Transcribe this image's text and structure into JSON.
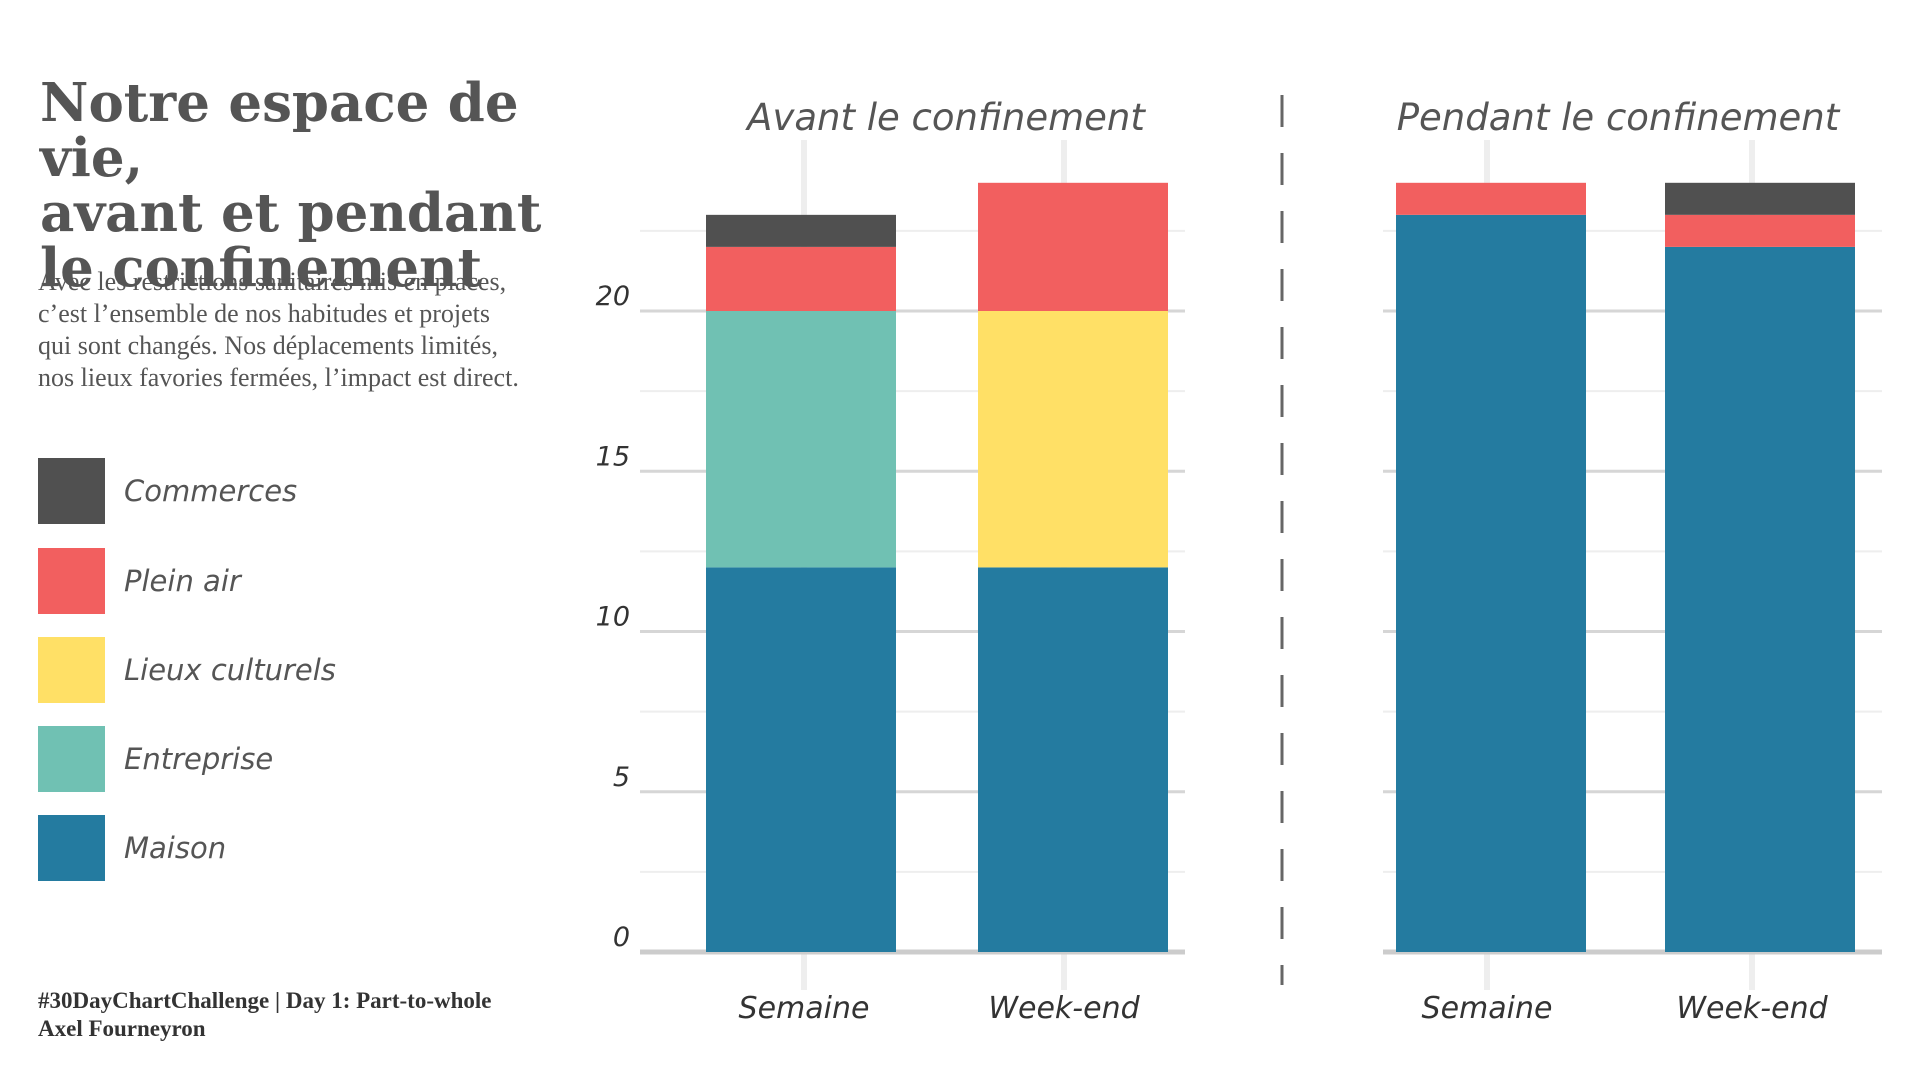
{
  "title_lines": [
    "Notre espace de vie,",
    "avant et pendant",
    "le confinement"
  ],
  "subtitle_lines": [
    "Avec les restrictions sanitaires mis en places,",
    "c’est l’ensemble de nos habitudes et projets",
    "qui sont changés. Nos déplacements limités,",
    "nos lieux favories fermées, l’impact est direct."
  ],
  "legend": [
    {
      "label": "Commerces",
      "color": "#505050"
    },
    {
      "label": "Plein air",
      "color": "#f25f5f"
    },
    {
      "label": "Lieux culturels",
      "color": "#ffe066"
    },
    {
      "label": "Entreprise",
      "color": "#70c1b3"
    },
    {
      "label": "Maison",
      "color": "#247ba0"
    }
  ],
  "caption_lines": [
    "#30DayChartChallenge | Day 1: Part-to-whole",
    "Axel Fourneyron"
  ],
  "chart_data": {
    "type": "bar",
    "stacked": true,
    "ylim": [
      0,
      24
    ],
    "yticks": [
      0,
      5,
      10,
      15,
      20
    ],
    "categories": [
      "Semaine",
      "Week-end"
    ],
    "stack_order": [
      "Maison",
      "Entreprise",
      "Lieux culturels",
      "Plein air",
      "Commerces"
    ],
    "panels": [
      {
        "title": "Avant le confinement",
        "series": [
          {
            "name": "Maison",
            "values": [
              12,
              12
            ]
          },
          {
            "name": "Entreprise",
            "values": [
              8,
              0
            ]
          },
          {
            "name": "Lieux culturels",
            "values": [
              0,
              8
            ]
          },
          {
            "name": "Plein air",
            "values": [
              2,
              4
            ]
          },
          {
            "name": "Commerces",
            "values": [
              1,
              0
            ]
          }
        ]
      },
      {
        "title": "Pendant le confinement",
        "series": [
          {
            "name": "Maison",
            "values": [
              23,
              22
            ]
          },
          {
            "name": "Entreprise",
            "values": [
              0,
              0
            ]
          },
          {
            "name": "Lieux culturels",
            "values": [
              0,
              0
            ]
          },
          {
            "name": "Plein air",
            "values": [
              1,
              1
            ]
          },
          {
            "name": "Commerces",
            "values": [
              0,
              1
            ]
          }
        ]
      }
    ]
  }
}
